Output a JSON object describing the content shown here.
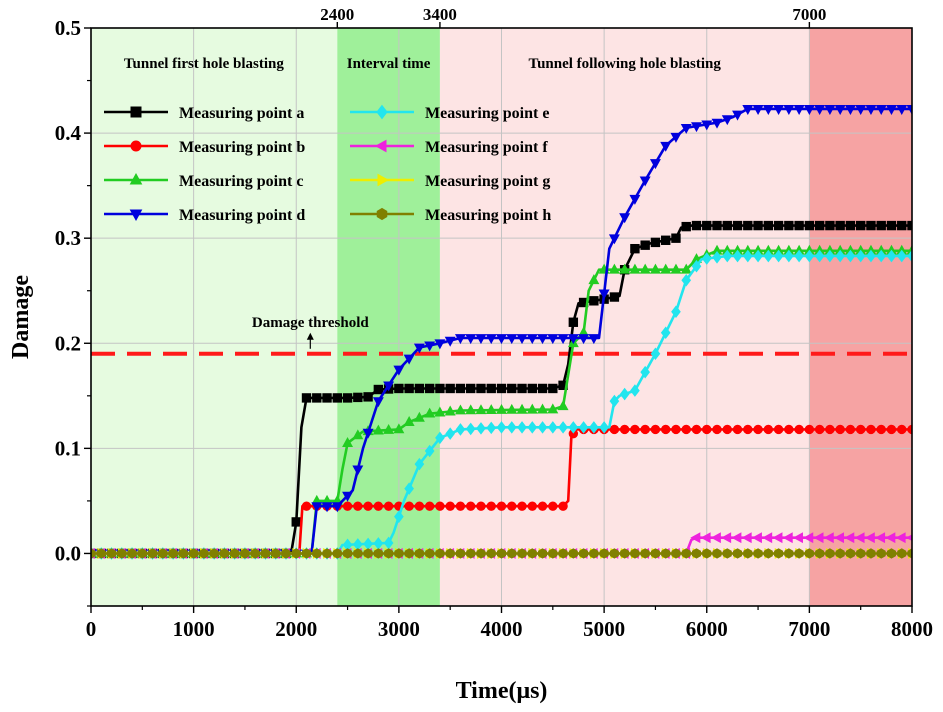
{
  "chart_data": {
    "type": "line",
    "title": "",
    "xlabel": "Time(μs)",
    "ylabel": "Damage",
    "xlim": [
      0,
      8000
    ],
    "ylim": [
      -0.05,
      0.5
    ],
    "xticks": [
      0,
      1000,
      2000,
      3000,
      4000,
      5000,
      6000,
      7000,
      8000
    ],
    "yticks": [
      0.0,
      0.1,
      0.2,
      0.3,
      0.4,
      0.5
    ],
    "yticks_text": [
      "0.0",
      "0.1",
      "0.2",
      "0.3",
      "0.4",
      "0.5"
    ],
    "top_ticks": [
      2400,
      3400,
      7000
    ],
    "grid": true,
    "legend_position": "top-left",
    "regions": [
      {
        "label": "Tunnel first hole blasting",
        "x0": 0,
        "x1": 2400,
        "color": "#e6fbe0"
      },
      {
        "label": "Interval time",
        "x0": 2400,
        "x1": 3400,
        "color": "#9ff09a"
      },
      {
        "label": "Tunnel following hole blasting",
        "x0": 3400,
        "x1": 7000,
        "color": "#fde4e4"
      },
      {
        "label": "",
        "x0": 7000,
        "x1": 8000,
        "color": "#f6a3a3"
      }
    ],
    "threshold": {
      "label": "Damage threshold",
      "value": 0.19,
      "color": "#ff1a1a"
    },
    "series": [
      {
        "name": "Measuring point a",
        "color": "#000000",
        "marker": "square",
        "points": [
          [
            0,
            0
          ],
          [
            1950,
            0
          ],
          [
            2000,
            0.03
          ],
          [
            2050,
            0.12
          ],
          [
            2100,
            0.148
          ],
          [
            2250,
            0.148
          ],
          [
            2500,
            0.148
          ],
          [
            2700,
            0.149
          ],
          [
            2800,
            0.156
          ],
          [
            3000,
            0.157
          ],
          [
            3500,
            0.157
          ],
          [
            4000,
            0.157
          ],
          [
            4500,
            0.157
          ],
          [
            4600,
            0.16
          ],
          [
            4650,
            0.18
          ],
          [
            4700,
            0.22
          ],
          [
            4750,
            0.238
          ],
          [
            5000,
            0.242
          ],
          [
            5150,
            0.245
          ],
          [
            5200,
            0.27
          ],
          [
            5300,
            0.29
          ],
          [
            5450,
            0.295
          ],
          [
            5700,
            0.3
          ],
          [
            5750,
            0.31
          ],
          [
            5850,
            0.312
          ],
          [
            8000,
            0.312
          ]
        ]
      },
      {
        "name": "Measuring point b",
        "color": "#ff0000",
        "marker": "circle",
        "points": [
          [
            0,
            0
          ],
          [
            2030,
            0
          ],
          [
            2060,
            0.045
          ],
          [
            4600,
            0.045
          ],
          [
            4650,
            0.05
          ],
          [
            4680,
            0.11
          ],
          [
            4720,
            0.118
          ],
          [
            8000,
            0.118
          ]
        ]
      },
      {
        "name": "Measuring point c",
        "color": "#22cc22",
        "marker": "triangle-up",
        "points": [
          [
            0,
            0
          ],
          [
            2150,
            0
          ],
          [
            2200,
            0.05
          ],
          [
            2400,
            0.05
          ],
          [
            2450,
            0.08
          ],
          [
            2500,
            0.105
          ],
          [
            2650,
            0.116
          ],
          [
            3000,
            0.118
          ],
          [
            3100,
            0.125
          ],
          [
            3300,
            0.133
          ],
          [
            3600,
            0.136
          ],
          [
            4500,
            0.137
          ],
          [
            4600,
            0.14
          ],
          [
            4700,
            0.2
          ],
          [
            4800,
            0.21
          ],
          [
            4850,
            0.25
          ],
          [
            4950,
            0.27
          ],
          [
            5800,
            0.27
          ],
          [
            5900,
            0.28
          ],
          [
            6100,
            0.288
          ],
          [
            8000,
            0.288
          ]
        ]
      },
      {
        "name": "Measuring point d",
        "color": "#0000dd",
        "marker": "triangle-down",
        "points": [
          [
            0,
            0
          ],
          [
            2150,
            0
          ],
          [
            2200,
            0.045
          ],
          [
            2400,
            0.045
          ],
          [
            2550,
            0.06
          ],
          [
            2650,
            0.1
          ],
          [
            2800,
            0.145
          ],
          [
            3000,
            0.175
          ],
          [
            3200,
            0.196
          ],
          [
            3400,
            0.2
          ],
          [
            3600,
            0.205
          ],
          [
            4500,
            0.205
          ],
          [
            4950,
            0.205
          ],
          [
            5050,
            0.29
          ],
          [
            5200,
            0.32
          ],
          [
            5400,
            0.355
          ],
          [
            5600,
            0.388
          ],
          [
            5800,
            0.405
          ],
          [
            6100,
            0.41
          ],
          [
            6250,
            0.415
          ],
          [
            6400,
            0.423
          ],
          [
            8000,
            0.423
          ]
        ]
      },
      {
        "name": "Measuring point e",
        "color": "#22e5ee",
        "marker": "diamond",
        "points": [
          [
            0,
            0
          ],
          [
            2400,
            0
          ],
          [
            2450,
            0.008
          ],
          [
            2900,
            0.01
          ],
          [
            2950,
            0.02
          ],
          [
            3050,
            0.05
          ],
          [
            3200,
            0.085
          ],
          [
            3400,
            0.11
          ],
          [
            3600,
            0.118
          ],
          [
            4000,
            0.12
          ],
          [
            5050,
            0.12
          ],
          [
            5100,
            0.145
          ],
          [
            5150,
            0.15
          ],
          [
            5300,
            0.155
          ],
          [
            5500,
            0.19
          ],
          [
            5700,
            0.23
          ],
          [
            5800,
            0.26
          ],
          [
            5950,
            0.28
          ],
          [
            6200,
            0.283
          ],
          [
            8000,
            0.283
          ]
        ]
      },
      {
        "name": "Measuring point f",
        "color": "#ee22dd",
        "marker": "triangle-left",
        "points": [
          [
            0,
            0
          ],
          [
            5800,
            0
          ],
          [
            5850,
            0.013
          ],
          [
            5900,
            0.015
          ],
          [
            8000,
            0.015
          ]
        ]
      },
      {
        "name": "Measuring point g",
        "color": "#eeee00",
        "marker": "triangle-right",
        "points": [
          [
            0,
            0
          ],
          [
            8000,
            0
          ]
        ]
      },
      {
        "name": "Measuring point h",
        "color": "#808000",
        "marker": "hexagon",
        "points": [
          [
            0,
            0
          ],
          [
            8000,
            0
          ]
        ]
      }
    ]
  }
}
